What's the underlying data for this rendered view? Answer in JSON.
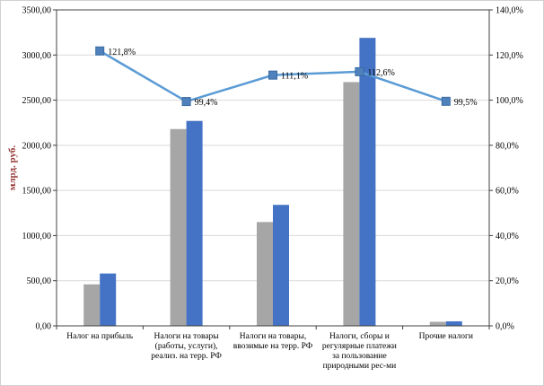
{
  "chart_data": {
    "type": "combo-bar-line",
    "categories": [
      [
        "Налог на прибыль"
      ],
      [
        "Налоги на товары",
        "(работы, услуги),",
        "реализ. на терр. РФ"
      ],
      [
        "Налоги на товары,",
        "ввозимые на терр. РФ"
      ],
      [
        "Налоги, сборы и",
        "регулярные платежи",
        "за пользование",
        "природными рес-ми"
      ],
      [
        "Прочие налоги"
      ]
    ],
    "bar_series": [
      {
        "name": "previous-period-bars",
        "color": "#a6a6a6",
        "values": [
          460,
          2180,
          1150,
          2700,
          45
        ]
      },
      {
        "name": "current-period-bars",
        "color": "#4472c4",
        "values": [
          580,
          2270,
          1340,
          3190,
          50
        ]
      }
    ],
    "line_series": {
      "name": "growth-rate-line",
      "color": "#5b9bd5",
      "marker_color": "#4f81bd",
      "values": [
        121.8,
        99.4,
        111.1,
        112.6,
        99.5
      ],
      "labels": [
        "121,8%",
        "99,4%",
        "111,1%",
        "112,6%",
        "99,5%"
      ]
    },
    "left_axis": {
      "title": "млрд. руб.",
      "title_color": "#943634",
      "min": 0,
      "max": 3500,
      "step": 500,
      "tick_labels": [
        "0,00",
        "500,00",
        "1000,00",
        "1500,00",
        "2000,00",
        "2500,00",
        "3000,00",
        "3500,00"
      ]
    },
    "right_axis": {
      "min": 0,
      "max": 140,
      "step": 20,
      "tick_labels": [
        "0,0%",
        "20,0%",
        "40,0%",
        "60,0%",
        "80,0%",
        "100,0%",
        "120,0%",
        "140,0%"
      ]
    },
    "grid": true,
    "gridline_color": "#d9d9d9",
    "axis_color": "#404040",
    "text_color": "#000000",
    "legend": "none"
  }
}
